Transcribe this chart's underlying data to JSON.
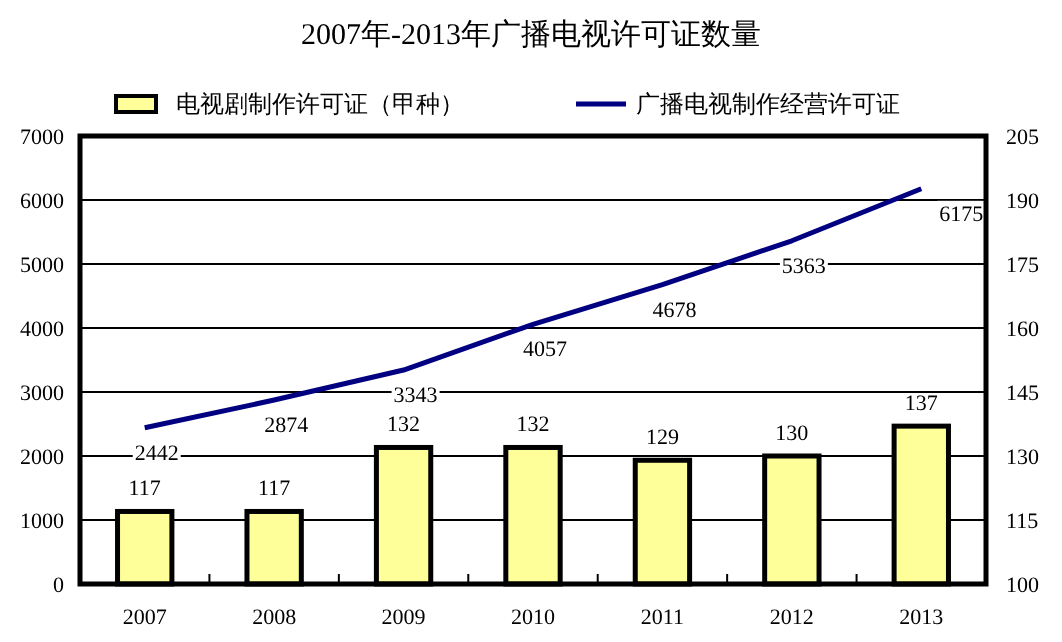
{
  "chart_data": {
    "type": "bar",
    "title": "2007年-2013年广播电视许可证数量",
    "categories": [
      "2007",
      "2008",
      "2009",
      "2010",
      "2011",
      "2012",
      "2013"
    ],
    "series": [
      {
        "name": "电视剧制作许可证（甲种）",
        "axis": "y2",
        "color": "#ffff99",
        "values": [
          117,
          117,
          132,
          132,
          129,
          130,
          137
        ]
      },
      {
        "name": "广播电视制作经营许可证",
        "type": "line",
        "color": "#000080",
        "values": [
          2442,
          2874,
          3343,
          4057,
          4678,
          5363,
          6175
        ]
      }
    ],
    "data_labels": true,
    "ylim": [
      0,
      7000
    ],
    "yticks": [
      0,
      1000,
      2000,
      3000,
      4000,
      5000,
      6000,
      7000
    ],
    "y2lim": [
      100,
      205
    ],
    "y2ticks": [
      100,
      115,
      130,
      145,
      160,
      175,
      190,
      205
    ],
    "grid": "y",
    "legend": "top"
  }
}
